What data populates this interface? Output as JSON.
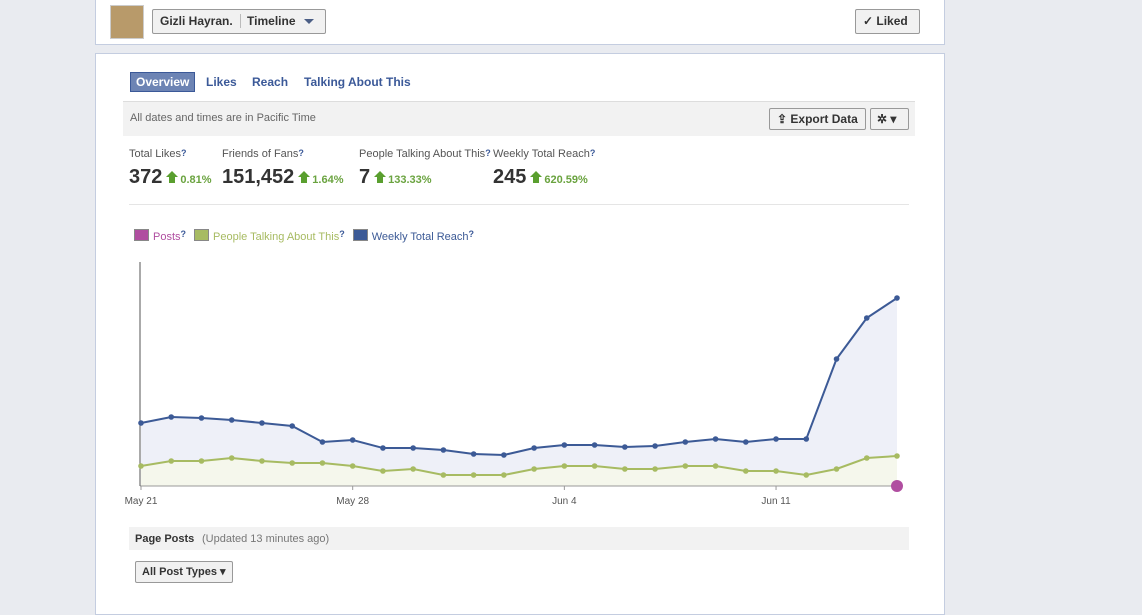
{
  "header": {
    "page_name": "Gizli Hayran.",
    "view": "Timeline",
    "liked": "Liked"
  },
  "tabs": [
    "Overview",
    "Likes",
    "Reach",
    "Talking About This"
  ],
  "toolbar": {
    "note": "All dates and times are in Pacific Time",
    "export": "Export Data"
  },
  "help_mark": "?",
  "stats": [
    {
      "label": "Total Likes",
      "value": "372",
      "change": "0.81%"
    },
    {
      "label": "Friends of Fans",
      "value": "151,452",
      "change": "1.64%"
    },
    {
      "label": "People Talking About This",
      "value": "7",
      "change": "133.33%"
    },
    {
      "label": "Weekly Total Reach",
      "value": "245",
      "change": "620.59%"
    }
  ],
  "chart_data": {
    "type": "line",
    "categories": [
      "May 21",
      null,
      null,
      null,
      null,
      null,
      null,
      "May 28",
      null,
      null,
      null,
      null,
      null,
      null,
      "Jun 4",
      null,
      null,
      null,
      null,
      null,
      null,
      "Jun 11",
      null,
      null,
      null,
      null
    ],
    "ylim": [
      0,
      224
    ],
    "series": [
      {
        "name": "Posts",
        "color": "#b04ea0",
        "values": [
          null,
          null,
          null,
          null,
          null,
          null,
          null,
          null,
          null,
          null,
          null,
          null,
          null,
          null,
          null,
          null,
          null,
          null,
          null,
          null,
          null,
          null,
          null,
          null,
          null,
          0
        ]
      },
      {
        "name": "People Talking About This",
        "color": "#a7bb62",
        "values": [
          20,
          25,
          25,
          28,
          25,
          23,
          23,
          20,
          15,
          17,
          11,
          11,
          11,
          17,
          20,
          20,
          17,
          17,
          20,
          20,
          15,
          15,
          11,
          17,
          28,
          30
        ]
      },
      {
        "name": "Weekly Total Reach",
        "color": "#3c5a96",
        "values": [
          63,
          69,
          68,
          66,
          63,
          60,
          44,
          46,
          38,
          38,
          36,
          32,
          31,
          38,
          41,
          41,
          39,
          40,
          44,
          47,
          44,
          47,
          47,
          127,
          168,
          188
        ]
      }
    ]
  },
  "page_posts": {
    "title": "Page Posts",
    "updated": "(Updated 13 minutes ago)",
    "filter": "All Post Types"
  }
}
